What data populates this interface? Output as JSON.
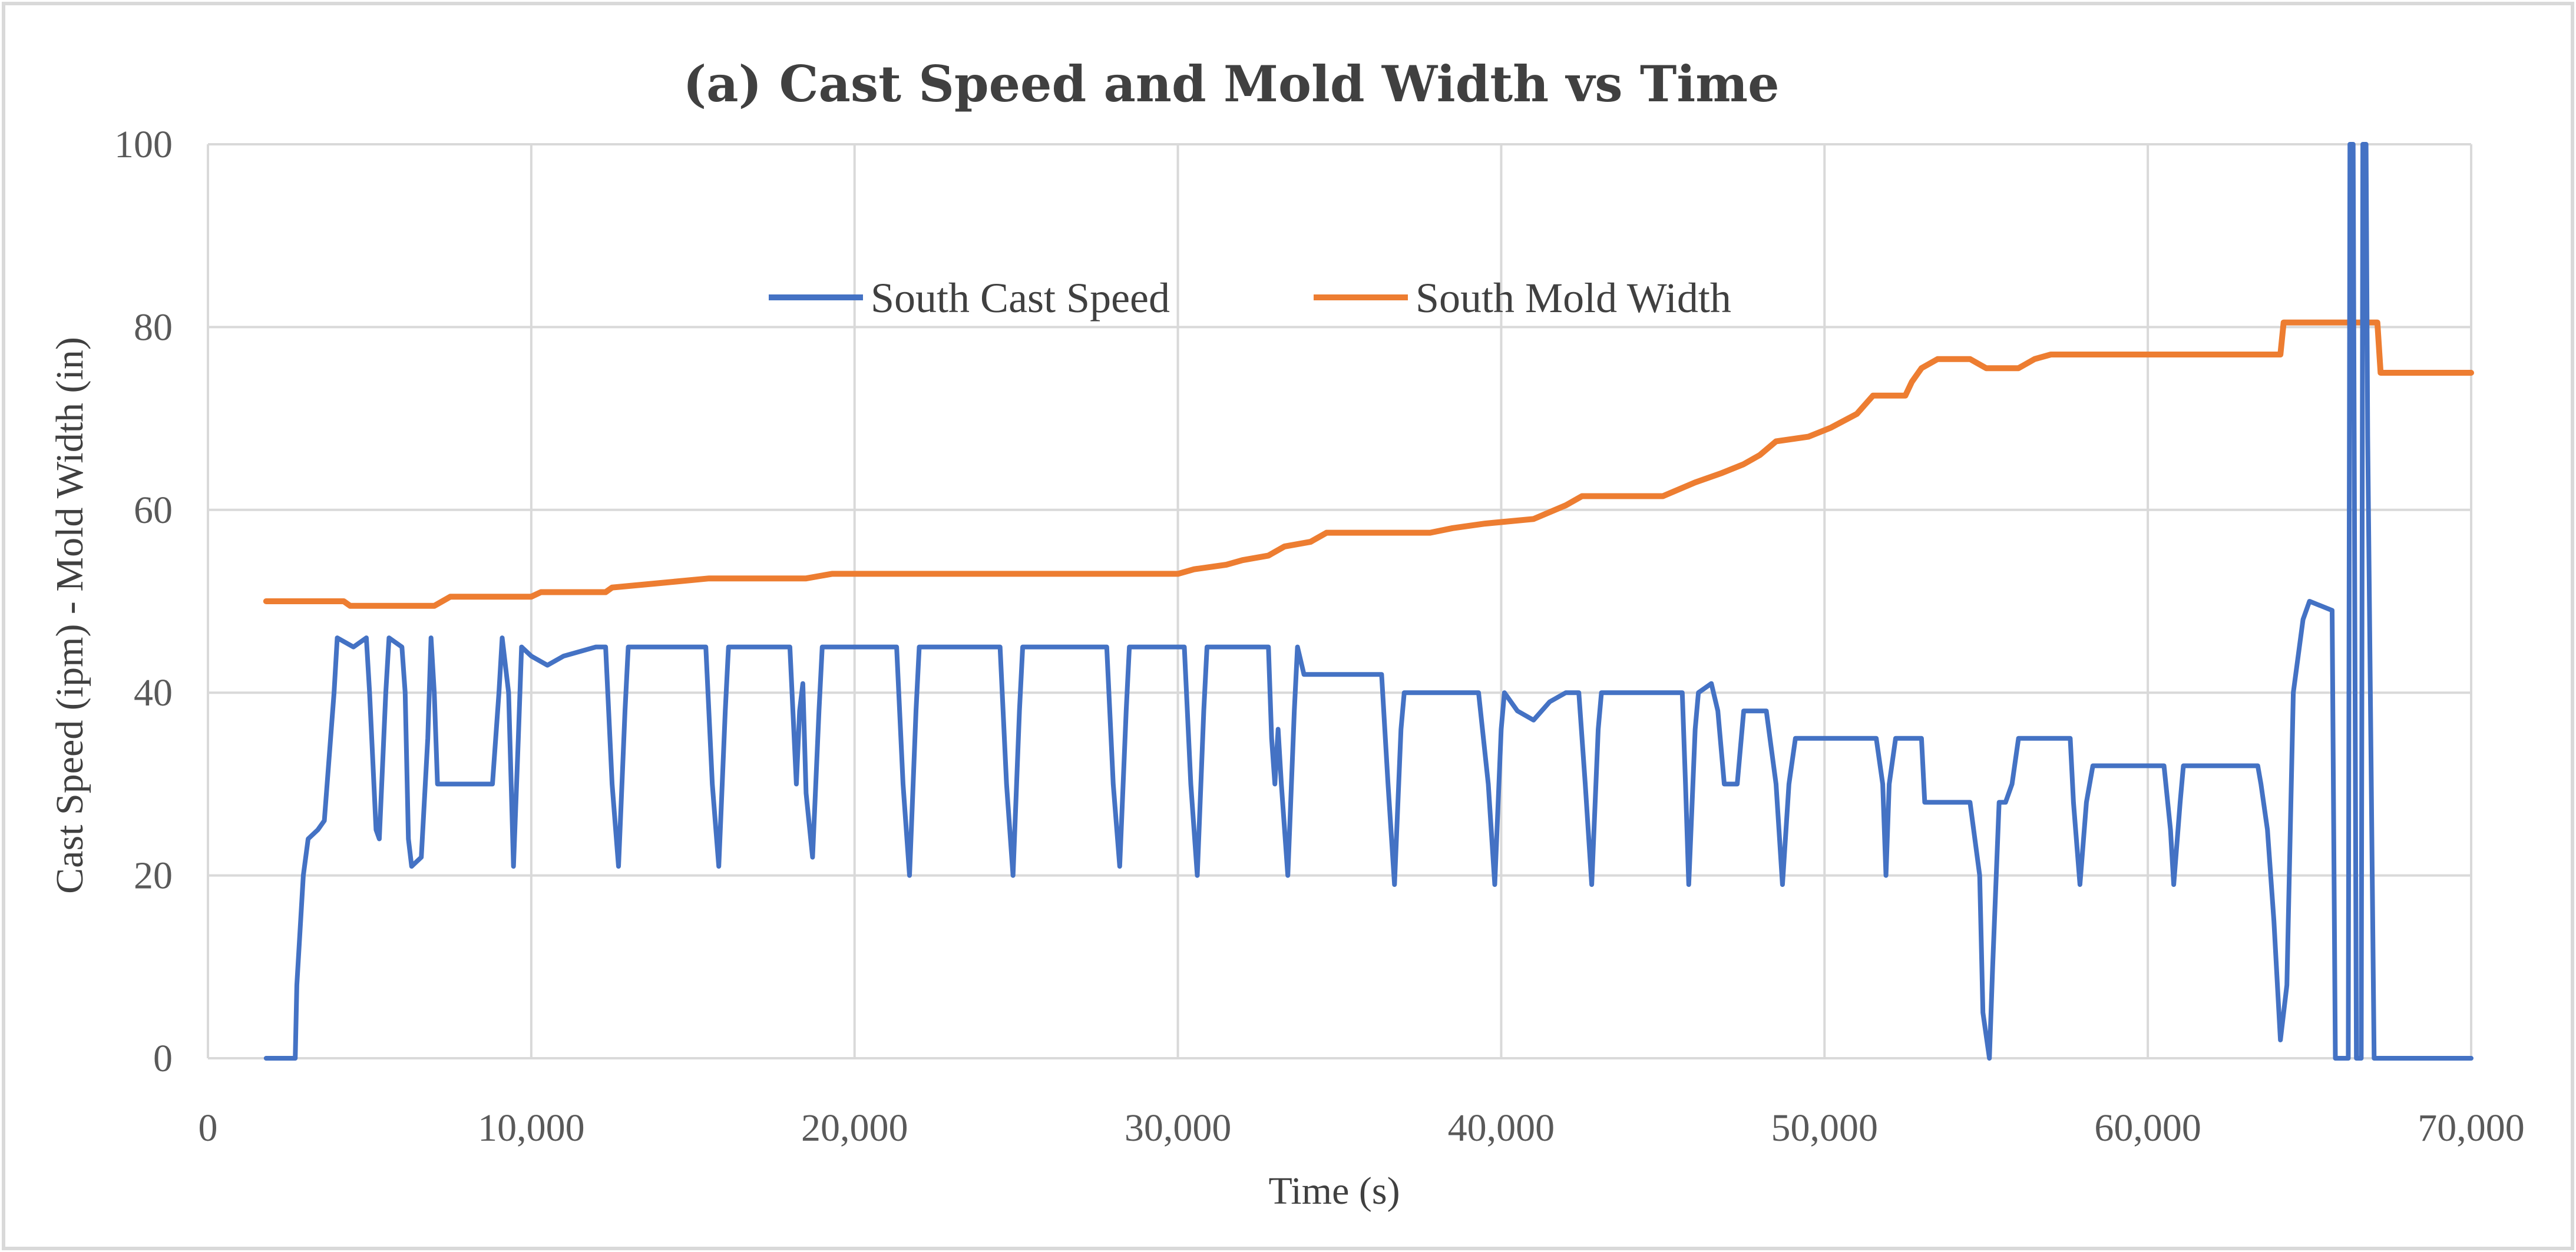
{
  "chart_data": {
    "type": "line",
    "title": "(a) Cast Speed and Mold Width vs Time",
    "xlabel": "Time (s)",
    "ylabel": "Cast Speed (ipm) - Mold Width (in)",
    "xlim": [
      0,
      70000
    ],
    "ylim": [
      0,
      100
    ],
    "x_ticks": [
      0,
      10000,
      20000,
      30000,
      40000,
      50000,
      60000,
      70000
    ],
    "x_tick_labels": [
      "0",
      "10,000",
      "20,000",
      "30,000",
      "40,000",
      "50,000",
      "60,000",
      "70,000"
    ],
    "y_ticks": [
      0,
      20,
      40,
      60,
      80,
      100
    ],
    "y_tick_labels": [
      "0",
      "20",
      "40",
      "60",
      "80",
      "100"
    ],
    "grid": true,
    "legend_position": "top-center",
    "colors": {
      "speed": "#4472C4",
      "width": "#ED7D31",
      "grid": "#D9D9D9",
      "border": "#D9D9D9"
    },
    "series": [
      {
        "name": "South Cast Speed",
        "color": "#4472C4",
        "points": [
          [
            1800,
            0
          ],
          [
            2700,
            0
          ],
          [
            2750,
            8
          ],
          [
            2950,
            20
          ],
          [
            3100,
            24
          ],
          [
            3400,
            25
          ],
          [
            3600,
            26
          ],
          [
            3900,
            40
          ],
          [
            4000,
            46
          ],
          [
            4500,
            45
          ],
          [
            4900,
            46
          ],
          [
            5000,
            40
          ],
          [
            5200,
            25
          ],
          [
            5300,
            24
          ],
          [
            5500,
            40
          ],
          [
            5600,
            46
          ],
          [
            6000,
            45
          ],
          [
            6100,
            40
          ],
          [
            6200,
            24
          ],
          [
            6300,
            21
          ],
          [
            6600,
            22
          ],
          [
            6800,
            35
          ],
          [
            6900,
            46
          ],
          [
            7000,
            40
          ],
          [
            7100,
            30
          ],
          [
            8500,
            30
          ],
          [
            8800,
            30
          ],
          [
            9000,
            40
          ],
          [
            9100,
            46
          ],
          [
            9300,
            40
          ],
          [
            9450,
            21
          ],
          [
            9600,
            35
          ],
          [
            9700,
            45
          ],
          [
            10000,
            44
          ],
          [
            10500,
            43
          ],
          [
            11000,
            44
          ],
          [
            12000,
            45
          ],
          [
            12300,
            45
          ],
          [
            12500,
            30
          ],
          [
            12700,
            21
          ],
          [
            12900,
            38
          ],
          [
            13000,
            45
          ],
          [
            15400,
            45
          ],
          [
            15600,
            30
          ],
          [
            15800,
            21
          ],
          [
            16000,
            38
          ],
          [
            16100,
            45
          ],
          [
            18000,
            45
          ],
          [
            18200,
            30
          ],
          [
            18300,
            38
          ],
          [
            18400,
            41
          ],
          [
            18500,
            29
          ],
          [
            18700,
            22
          ],
          [
            18900,
            38
          ],
          [
            19000,
            45
          ],
          [
            21300,
            45
          ],
          [
            21500,
            30
          ],
          [
            21700,
            20
          ],
          [
            21900,
            38
          ],
          [
            22000,
            45
          ],
          [
            24500,
            45
          ],
          [
            24700,
            30
          ],
          [
            24900,
            20
          ],
          [
            25100,
            38
          ],
          [
            25200,
            45
          ],
          [
            27800,
            45
          ],
          [
            28000,
            30
          ],
          [
            28200,
            21
          ],
          [
            28400,
            38
          ],
          [
            28500,
            45
          ],
          [
            30200,
            45
          ],
          [
            30400,
            30
          ],
          [
            30600,
            20
          ],
          [
            30800,
            38
          ],
          [
            30900,
            45
          ],
          [
            32800,
            45
          ],
          [
            32900,
            35
          ],
          [
            33000,
            30
          ],
          [
            33100,
            36
          ],
          [
            33200,
            30
          ],
          [
            33400,
            20
          ],
          [
            33600,
            38
          ],
          [
            33700,
            45
          ],
          [
            33900,
            42
          ],
          [
            36300,
            42
          ],
          [
            36500,
            30
          ],
          [
            36700,
            19
          ],
          [
            36900,
            36
          ],
          [
            37000,
            40
          ],
          [
            39300,
            40
          ],
          [
            39600,
            30
          ],
          [
            39800,
            19
          ],
          [
            40000,
            36
          ],
          [
            40100,
            40
          ],
          [
            40500,
            38
          ],
          [
            41000,
            37
          ],
          [
            41500,
            39
          ],
          [
            42000,
            40
          ],
          [
            42400,
            40
          ],
          [
            42600,
            30
          ],
          [
            42800,
            19
          ],
          [
            43000,
            36
          ],
          [
            43100,
            40
          ],
          [
            45600,
            40
          ],
          [
            45700,
            30
          ],
          [
            45800,
            19
          ],
          [
            46000,
            36
          ],
          [
            46100,
            40
          ],
          [
            46500,
            41
          ],
          [
            46700,
            38
          ],
          [
            46900,
            30
          ],
          [
            47300,
            30
          ],
          [
            47500,
            38
          ],
          [
            48200,
            38
          ],
          [
            48500,
            30
          ],
          [
            48700,
            19
          ],
          [
            48900,
            30
          ],
          [
            49100,
            35
          ],
          [
            51600,
            35
          ],
          [
            51800,
            30
          ],
          [
            51900,
            20
          ],
          [
            52000,
            30
          ],
          [
            52200,
            35
          ],
          [
            53000,
            35
          ],
          [
            53100,
            28
          ],
          [
            54500,
            28
          ],
          [
            54800,
            20
          ],
          [
            54900,
            5
          ],
          [
            55100,
            0
          ],
          [
            55200,
            10
          ],
          [
            55400,
            28
          ],
          [
            55600,
            28
          ],
          [
            55800,
            30
          ],
          [
            56000,
            35
          ],
          [
            57600,
            35
          ],
          [
            57700,
            28
          ],
          [
            57900,
            19
          ],
          [
            58100,
            28
          ],
          [
            58300,
            32
          ],
          [
            60500,
            32
          ],
          [
            60700,
            25
          ],
          [
            60800,
            19
          ],
          [
            61000,
            28
          ],
          [
            61100,
            32
          ],
          [
            63400,
            32
          ],
          [
            63500,
            30
          ],
          [
            63700,
            25
          ],
          [
            63900,
            15
          ],
          [
            64100,
            2
          ],
          [
            64300,
            8
          ],
          [
            64500,
            40
          ],
          [
            64800,
            48
          ],
          [
            65000,
            50
          ],
          [
            65700,
            49
          ],
          [
            65800,
            0
          ],
          [
            66200,
            0
          ],
          [
            66250,
            100
          ],
          [
            66350,
            100
          ],
          [
            66450,
            0
          ],
          [
            66600,
            0
          ],
          [
            66650,
            100
          ],
          [
            66750,
            100
          ],
          [
            66800,
            68
          ],
          [
            67000,
            0
          ],
          [
            70000,
            0
          ]
        ]
      },
      {
        "name": "South Mold Width",
        "color": "#ED7D31",
        "points": [
          [
            1800,
            50
          ],
          [
            4200,
            50
          ],
          [
            4400,
            49.5
          ],
          [
            7000,
            49.5
          ],
          [
            7500,
            50.5
          ],
          [
            10000,
            50.5
          ],
          [
            10300,
            51
          ],
          [
            12300,
            51
          ],
          [
            12500,
            51.5
          ],
          [
            14000,
            52
          ],
          [
            15500,
            52.5
          ],
          [
            18500,
            52.5
          ],
          [
            19300,
            53
          ],
          [
            30000,
            53
          ],
          [
            30500,
            53.5
          ],
          [
            31500,
            54
          ],
          [
            32000,
            54.5
          ],
          [
            32800,
            55
          ],
          [
            33300,
            56
          ],
          [
            34100,
            56.5
          ],
          [
            34600,
            57.5
          ],
          [
            37800,
            57.5
          ],
          [
            38500,
            58
          ],
          [
            39500,
            58.5
          ],
          [
            41000,
            59
          ],
          [
            42000,
            60.5
          ],
          [
            42500,
            61.5
          ],
          [
            45000,
            61.5
          ],
          [
            46000,
            63
          ],
          [
            46800,
            64
          ],
          [
            47500,
            65
          ],
          [
            48000,
            66
          ],
          [
            48500,
            67.5
          ],
          [
            49500,
            68
          ],
          [
            50200,
            69
          ],
          [
            51000,
            70.5
          ],
          [
            51500,
            72.5
          ],
          [
            52500,
            72.5
          ],
          [
            52700,
            74
          ],
          [
            53000,
            75.5
          ],
          [
            53500,
            76.5
          ],
          [
            54500,
            76.5
          ],
          [
            55000,
            75.5
          ],
          [
            56000,
            75.5
          ],
          [
            56500,
            76.5
          ],
          [
            57000,
            77
          ],
          [
            64100,
            77
          ],
          [
            64200,
            80.5
          ],
          [
            67100,
            80.5
          ],
          [
            67200,
            75
          ],
          [
            70000,
            75
          ]
        ]
      }
    ]
  }
}
